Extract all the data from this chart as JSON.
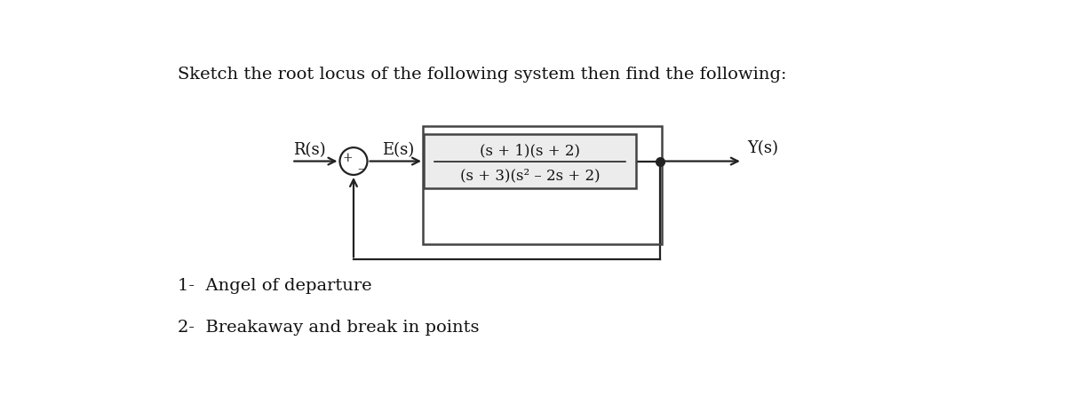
{
  "title": "Sketch the root locus of the following system then find the following:",
  "title_fontsize": 14,
  "fig_bg": "#ffffff",
  "transfer_fn_num": "(s + 1)(s + 2)",
  "transfer_fn_den": "(s + 3)(s² – 2s + 2)",
  "label_Rs": "R(s)",
  "label_Es": "E(s)",
  "label_Ys": "Y(s)",
  "sum_plus": "+",
  "sum_minus": "–",
  "item1": "1-  Angel of departure",
  "item2": "2-  Breakaway and break in points",
  "item_fontsize": 14,
  "label_fontsize": 13,
  "tf_fontsize": 12
}
